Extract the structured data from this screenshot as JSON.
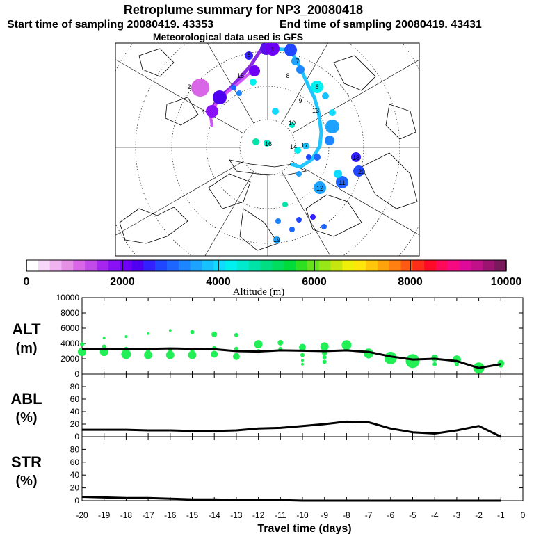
{
  "header": {
    "title": "Retroplume summary for NP3_20080418",
    "start_label": "Start time of sampling 20080419. 43353",
    "end_label": "End time of sampling 20080419. 43431",
    "met_label": "Meteorological data used is GFS"
  },
  "colorbar": {
    "label": "Altitude (m)",
    "ticks": [
      "0",
      "2000",
      "4000",
      "6000",
      "8000",
      "10000"
    ],
    "range": [
      0,
      10000
    ],
    "colors": [
      "#ffffff",
      "#f7d7f7",
      "#efb3ef",
      "#e58fe5",
      "#d966e6",
      "#c14ae8",
      "#a626ef",
      "#8a10f5",
      "#6f00f7",
      "#4f00f0",
      "#3320ff",
      "#2046ff",
      "#1d66ff",
      "#1b86ff",
      "#1ba3ff",
      "#17c0ff",
      "#10dbff",
      "#00efef",
      "#00eacd",
      "#00e3a8",
      "#00de84",
      "#00dd5f",
      "#00dd3a",
      "#2ee020",
      "#66e31c",
      "#99e617",
      "#c6e610",
      "#eef00a",
      "#ffe60a",
      "#ffc60a",
      "#ffa30d",
      "#ff8010",
      "#ff5a14",
      "#ff2e18",
      "#ff0a28",
      "#ff0a5a",
      "#f50a82",
      "#e00a9a",
      "#c21088",
      "#9c1470",
      "#7a1a5c"
    ]
  },
  "map": {
    "trajectory_labels": [
      "1",
      "2",
      "3",
      "4",
      "5",
      "6",
      "7",
      "8",
      "9",
      "10",
      "11",
      "12",
      "13",
      "14",
      "15",
      "16",
      "17",
      "18",
      "19",
      "20"
    ],
    "plume1_color": "#1fc6ff",
    "plume2_color": "#8a2be2",
    "plume3_color": "#d254ff"
  },
  "chart_data": [
    {
      "type": "line",
      "panel": "ALT",
      "ylabel_line1": "ALT",
      "ylabel_line2": "(m)",
      "ylim": [
        0,
        10000
      ],
      "yticks": [
        "10000",
        "8000",
        "6000",
        "4000",
        "2000",
        "0"
      ],
      "x": [
        -20,
        -19,
        -18,
        -17,
        -16,
        -15,
        -14,
        -13,
        -12,
        -11,
        -10,
        -9,
        -8,
        -7,
        -6,
        -5,
        -4,
        -3,
        -2,
        -1
      ],
      "values": [
        3300,
        3300,
        3300,
        3300,
        3350,
        3300,
        3250,
        3000,
        2950,
        3100,
        3050,
        3000,
        3100,
        2900,
        2300,
        1900,
        2000,
        1700,
        800,
        1300
      ],
      "scatter": [
        {
          "x": -20,
          "y": 2900,
          "s": 6
        },
        {
          "x": -19,
          "y": 2900,
          "s": 6
        },
        {
          "x": -18,
          "y": 2600,
          "s": 7
        },
        {
          "x": -17,
          "y": 2500,
          "s": 6
        },
        {
          "x": -16,
          "y": 2500,
          "s": 6
        },
        {
          "x": -15,
          "y": 2500,
          "s": 6
        },
        {
          "x": -14,
          "y": 2600,
          "s": 5
        },
        {
          "x": -13,
          "y": 2300,
          "s": 5
        },
        {
          "x": -12,
          "y": 3900,
          "s": 6
        },
        {
          "x": -11,
          "y": 4100,
          "s": 4
        },
        {
          "x": -10,
          "y": 3500,
          "s": 5
        },
        {
          "x": -9,
          "y": 3600,
          "s": 6
        },
        {
          "x": -8,
          "y": 3800,
          "s": 7
        },
        {
          "x": -7,
          "y": 2700,
          "s": 7
        },
        {
          "x": -6,
          "y": 2100,
          "s": 9
        },
        {
          "x": -5,
          "y": 1700,
          "s": 10
        },
        {
          "x": -4,
          "y": 2100,
          "s": 5
        },
        {
          "x": -3,
          "y": 1900,
          "s": 6
        },
        {
          "x": -2,
          "y": 800,
          "s": 8
        },
        {
          "x": -1,
          "y": 1400,
          "s": 5
        },
        {
          "x": -19,
          "y": 4700,
          "s": 2
        },
        {
          "x": -18,
          "y": 4900,
          "s": 2
        },
        {
          "x": -17,
          "y": 5300,
          "s": 2
        },
        {
          "x": -16,
          "y": 5700,
          "s": 2
        },
        {
          "x": -15,
          "y": 5500,
          "s": 3
        },
        {
          "x": -14,
          "y": 5200,
          "s": 4
        },
        {
          "x": -13,
          "y": 5100,
          "s": 3
        },
        {
          "x": -20,
          "y": 3900,
          "s": 3
        },
        {
          "x": -19,
          "y": 3600,
          "s": 3
        },
        {
          "x": -18,
          "y": 3300,
          "s": 3
        },
        {
          "x": -17,
          "y": 3000,
          "s": 3
        },
        {
          "x": -16,
          "y": 3200,
          "s": 3
        },
        {
          "x": -15,
          "y": 3100,
          "s": 3
        },
        {
          "x": -14,
          "y": 3400,
          "s": 3
        },
        {
          "x": -13,
          "y": 3300,
          "s": 3
        },
        {
          "x": -12,
          "y": 3000,
          "s": 3
        },
        {
          "x": -11,
          "y": 3300,
          "s": 3
        },
        {
          "x": -10,
          "y": 2500,
          "s": 3
        },
        {
          "x": -10,
          "y": 1800,
          "s": 2
        },
        {
          "x": -10,
          "y": 1300,
          "s": 2
        },
        {
          "x": -9,
          "y": 2800,
          "s": 4
        },
        {
          "x": -9,
          "y": 2200,
          "s": 3
        },
        {
          "x": -9,
          "y": 1600,
          "s": 3
        },
        {
          "x": -8,
          "y": 3300,
          "s": 4
        },
        {
          "x": -7,
          "y": 2300,
          "s": 3
        },
        {
          "x": -6,
          "y": 1900,
          "s": 4
        },
        {
          "x": -5,
          "y": 2000,
          "s": 5
        },
        {
          "x": -4,
          "y": 1300,
          "s": 3
        },
        {
          "x": -3,
          "y": 1300,
          "s": 3
        },
        {
          "x": -2,
          "y": 1000,
          "s": 4
        },
        {
          "x": -1,
          "y": 1100,
          "s": 3
        }
      ],
      "marker_color": "#22ee55"
    },
    {
      "type": "line",
      "panel": "ABL",
      "ylabel_line1": "ABL",
      "ylabel_line2": "(%)",
      "ylim": [
        0,
        100
      ],
      "yticks": [
        "80",
        "60",
        "40",
        "20",
        "0"
      ],
      "x": [
        -20,
        -19,
        -18,
        -17,
        -16,
        -15,
        -14,
        -13,
        -12,
        -11,
        -10,
        -9,
        -8,
        -7,
        -6,
        -5,
        -4,
        -3,
        -2,
        -1
      ],
      "values": [
        11,
        11,
        11,
        10,
        10,
        9,
        9,
        10,
        13,
        14,
        17,
        20,
        24,
        23,
        13,
        7,
        5,
        10,
        17,
        0
      ]
    },
    {
      "type": "line",
      "panel": "STR",
      "ylabel_line1": "STR",
      "ylabel_line2": "(%)",
      "ylim": [
        0,
        100
      ],
      "yticks": [
        "80",
        "60",
        "40",
        "20",
        "0"
      ],
      "x": [
        -20,
        -19,
        -18,
        -17,
        -16,
        -15,
        -14,
        -13,
        -12,
        -11,
        -10,
        -9,
        -8,
        -7,
        -6,
        -5,
        -4,
        -3,
        -2,
        -1
      ],
      "values": [
        6,
        5,
        4,
        4,
        3,
        2,
        2,
        1,
        1,
        1,
        0,
        0,
        0,
        0,
        0,
        0,
        0,
        0,
        0,
        0
      ]
    }
  ],
  "xaxis": {
    "label": "Travel time (days)",
    "ticks": [
      "-20",
      "-19",
      "-18",
      "-17",
      "-16",
      "-15",
      "-14",
      "-13",
      "-12",
      "-11",
      "-10",
      "-9",
      "-8",
      "-7",
      "-6",
      "-5",
      "-4",
      "-3",
      "-2",
      "-1",
      "0"
    ],
    "xlim": [
      -20,
      0
    ]
  }
}
